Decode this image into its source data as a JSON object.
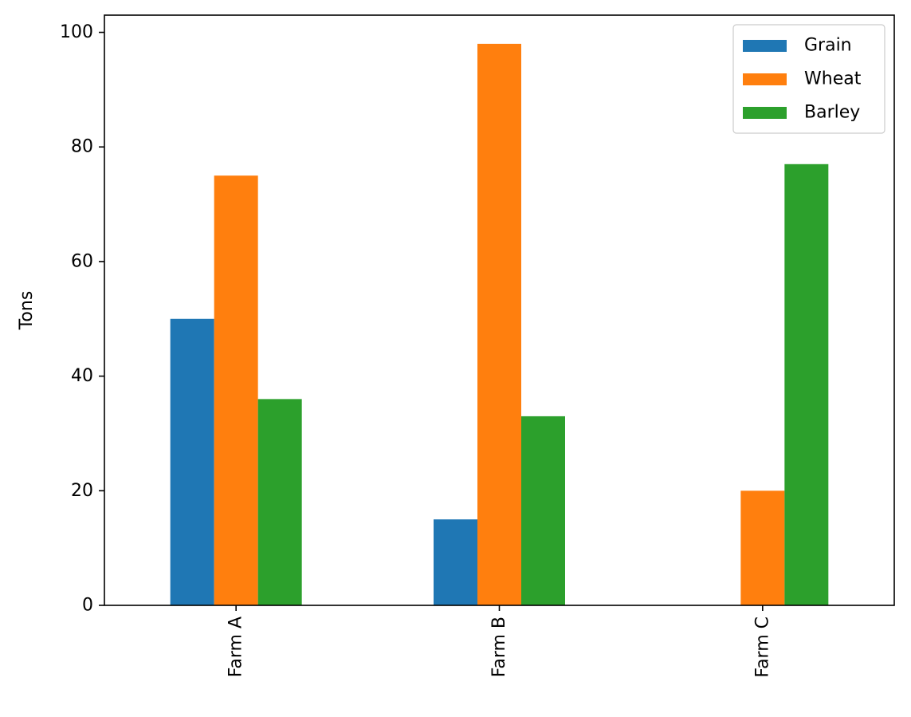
{
  "chart_data": {
    "type": "bar",
    "title": "",
    "xlabel": "",
    "ylabel": "Tons",
    "categories": [
      "Farm A",
      "Farm B",
      "Farm C"
    ],
    "series": [
      {
        "name": "Grain",
        "values": [
          50,
          15,
          0
        ],
        "color": "#1f77b4"
      },
      {
        "name": "Wheat",
        "values": [
          75,
          98,
          20
        ],
        "color": "#ff7f0e"
      },
      {
        "name": "Barley",
        "values": [
          36,
          33,
          77
        ],
        "color": "#2ca02c"
      }
    ],
    "ylim": [
      0,
      103
    ],
    "yticks": [
      0,
      20,
      40,
      60,
      80,
      100
    ],
    "grid": false,
    "legend_position": "top-right"
  }
}
